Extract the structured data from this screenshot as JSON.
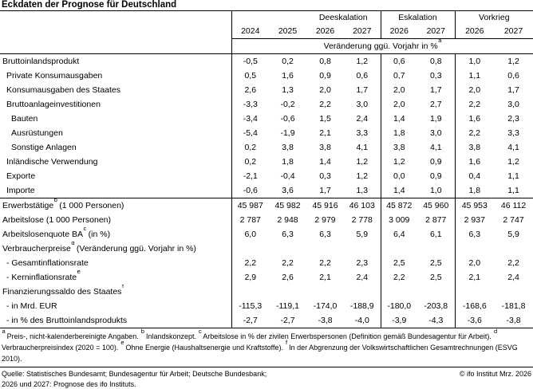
{
  "title": "Eckdaten der Prognose für Deutschland",
  "table": {
    "scenario_groups": [
      "Deeskalation",
      "Eskalation",
      "Vorkrieg"
    ],
    "years": [
      "2024",
      "2025",
      "2026",
      "2027",
      "2026",
      "2027",
      "2026",
      "2027"
    ],
    "subtitle": {
      "text": "Veränderung ggü. Vorjahr in %",
      "sup": "a"
    },
    "rows": [
      {
        "label": "Bruttoinlandsprodukt",
        "sup": "",
        "label_post": "",
        "indent": 0,
        "divider_below": false,
        "values": [
          "-0,5",
          "0,2",
          "0,8",
          "1,2",
          "0,6",
          "0,8",
          "1,0",
          "1,2"
        ]
      },
      {
        "label": "Private Konsumausgaben",
        "sup": "",
        "label_post": "",
        "indent": 1,
        "divider_below": false,
        "values": [
          "0,5",
          "1,6",
          "0,9",
          "0,6",
          "0,7",
          "0,3",
          "1,1",
          "0,6"
        ]
      },
      {
        "label": "Konsumausgaben des Staates",
        "sup": "",
        "label_post": "",
        "indent": 1,
        "divider_below": false,
        "values": [
          "2,6",
          "1,3",
          "2,0",
          "1,7",
          "2,0",
          "1,7",
          "2,0",
          "1,7"
        ]
      },
      {
        "label": "Bruttoanlageinvestitionen",
        "sup": "",
        "label_post": "",
        "indent": 1,
        "divider_below": false,
        "values": [
          "-3,3",
          "-0,2",
          "2,2",
          "3,0",
          "2,0",
          "2,7",
          "2,2",
          "3,0"
        ]
      },
      {
        "label": "Bauten",
        "sup": "",
        "label_post": "",
        "indent": 2,
        "divider_below": false,
        "values": [
          "-3,4",
          "-0,6",
          "1,5",
          "2,4",
          "1,4",
          "1,9",
          "1,6",
          "2,3"
        ]
      },
      {
        "label": "Ausrüstungen",
        "sup": "",
        "label_post": "",
        "indent": 2,
        "divider_below": false,
        "values": [
          "-5,4",
          "-1,9",
          "2,1",
          "3,3",
          "1,8",
          "3,0",
          "2,2",
          "3,3"
        ]
      },
      {
        "label": "Sonstige Anlagen",
        "sup": "",
        "label_post": "",
        "indent": 2,
        "divider_below": false,
        "values": [
          "0,2",
          "3,8",
          "3,8",
          "4,1",
          "3,8",
          "4,1",
          "3,8",
          "4,1"
        ]
      },
      {
        "label": "Inländische Verwendung",
        "sup": "",
        "label_post": "",
        "indent": 1,
        "divider_below": false,
        "values": [
          "0,2",
          "1,8",
          "1,4",
          "1,2",
          "1,2",
          "0,9",
          "1,6",
          "1,2"
        ]
      },
      {
        "label": "Exporte",
        "sup": "",
        "label_post": "",
        "indent": 1,
        "divider_below": false,
        "values": [
          "-2,1",
          "-0,4",
          "0,3",
          "1,2",
          "0,0",
          "0,9",
          "0,4",
          "1,1"
        ]
      },
      {
        "label": "Importe",
        "sup": "",
        "label_post": "",
        "indent": 1,
        "divider_below": true,
        "values": [
          "-0,6",
          "3,6",
          "1,7",
          "1,3",
          "1,4",
          "1,0",
          "1,8",
          "1,1"
        ]
      },
      {
        "label": "Erwerbstätige",
        "sup": "b",
        "label_post": " (1 000 Personen)",
        "indent": 0,
        "divider_below": false,
        "values": [
          "45 987",
          "45 982",
          "45 916",
          "46 103",
          "45 872",
          "45 960",
          "45 953",
          "46 112"
        ]
      },
      {
        "label": "Arbeitslose (1 000 Personen)",
        "sup": "",
        "label_post": "",
        "indent": 0,
        "divider_below": false,
        "values": [
          "2 787",
          "2 948",
          "2 979",
          "2 778",
          "3 009",
          "2 877",
          "2 937",
          "2 747"
        ]
      },
      {
        "label": "Arbeitslosenquote BA",
        "sup": "c",
        "label_post": " (in %)",
        "indent": 0,
        "divider_below": false,
        "values": [
          "6,0",
          "6,3",
          "6,3",
          "5,9",
          "6,4",
          "6,1",
          "6,3",
          "5,9"
        ]
      },
      {
        "label": "Verbraucherpreise",
        "sup": "d",
        "label_post": " (Veränderung ggü. Vorjahr in %)",
        "indent": 0,
        "divider_below": false,
        "values": null
      },
      {
        "label": "- Gesamtinflationsrate",
        "sup": "",
        "label_post": "",
        "indent": 1,
        "divider_below": false,
        "values": [
          "2,2",
          "2,2",
          "2,2",
          "2,3",
          "2,5",
          "2,5",
          "2,0",
          "2,2"
        ]
      },
      {
        "label": "- Kerninflationsrate",
        "sup": "e",
        "label_post": "",
        "indent": 1,
        "divider_below": false,
        "values": [
          "2,9",
          "2,6",
          "2,1",
          "2,4",
          "2,2",
          "2,5",
          "2,1",
          "2,4"
        ]
      },
      {
        "label": "Finanzierungssaldo des Staates",
        "sup": "f",
        "label_post": "",
        "indent": 0,
        "divider_below": false,
        "values": null
      },
      {
        "label": "- in Mrd. EUR",
        "sup": "",
        "label_post": "",
        "indent": 1,
        "divider_below": false,
        "values": [
          "-115,3",
          "-119,1",
          "-174,0",
          "-188,9",
          "-180,0",
          "-203,8",
          "-168,6",
          "-181,8"
        ]
      },
      {
        "label": "- in % des Bruttoinlandsprodukts",
        "sup": "",
        "label_post": "",
        "indent": 1,
        "divider_below": false,
        "values": [
          "-2,7",
          "-2,7",
          "-3,8",
          "-4,0",
          "-3,9",
          "-4,3",
          "-3,6",
          "-3,8"
        ]
      }
    ]
  },
  "footnotes": [
    {
      "sup": "a",
      "text": " Preis-, nicht-kalenderbereinigte Angaben. "
    },
    {
      "sup": "b",
      "text": " Inlandskonzept. "
    },
    {
      "sup": "c",
      "text": " Arbeitslose in % der zivilen Erwerbspersonen (Definition gemäß Bundesagentur für Arbeit). "
    },
    {
      "sup": "d",
      "text": " Verbraucherpreisindex (2020 = 100). "
    },
    {
      "sup": "e",
      "text": " Ohne Energie (Haushaltsenergie und Kraftstoffe). "
    },
    {
      "sup": "f",
      "text": " In der Abgrenzung der Volkswirtschaftlichen Gesamtrechnungen (ESVG 2010)."
    }
  ],
  "source": {
    "line1": "Quelle: Statistisches Bundesamt; Bundesagentur für Arbeit; Deutsche Bundesbank;",
    "line2": "2026 und 2027: Prognose des ifo Instituts.",
    "copyright": "© ifo Institut Mrz. 2026"
  }
}
